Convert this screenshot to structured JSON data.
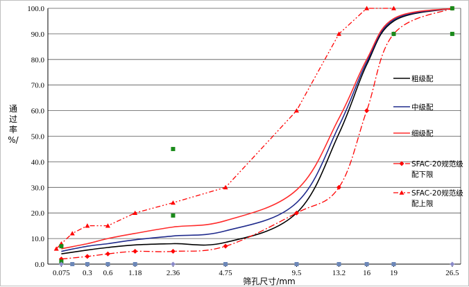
{
  "chart_data": {
    "type": "line",
    "xlabel": "筛孔尺寸/mm",
    "ylabel": [
      "通",
      "过",
      "率",
      "%/"
    ],
    "ylim": [
      0,
      100
    ],
    "yticks": [
      "0.0",
      "10.0",
      "20.0",
      "30.0",
      "40.0",
      "50.0",
      "60.0",
      "70.0",
      "80.0",
      "90.0",
      "100.0"
    ],
    "x_categories": [
      "0.075",
      "0.3",
      "0.6",
      "1.18",
      "2.36",
      "4.75",
      "9.5",
      "13.2",
      "16",
      "19",
      "26.5"
    ],
    "x_scale": "power-0.45",
    "grid": "horizontal",
    "legend_position": "right",
    "series": [
      {
        "name": "粗级配",
        "color": "#000000",
        "style": "solid",
        "smooth": true,
        "x": [
          0.075,
          0.3,
          0.6,
          1.18,
          2.36,
          4.75,
          9.5,
          13.2,
          16,
          19,
          26.5
        ],
        "y": [
          4,
          5.5,
          6.5,
          7.5,
          8,
          8.5,
          20,
          51,
          78,
          95,
          100
        ]
      },
      {
        "name": "中级配",
        "color": "#1f2a8c",
        "style": "solid",
        "smooth": true,
        "x": [
          0.075,
          0.3,
          0.6,
          1.18,
          2.36,
          4.75,
          9.5,
          13.2,
          16,
          19,
          26.5
        ],
        "y": [
          5,
          7,
          8,
          9.5,
          11,
          13,
          24,
          54,
          79,
          95.5,
          100
        ]
      },
      {
        "name": "细级配",
        "color": "#ff2b2b",
        "style": "solid",
        "smooth": true,
        "x": [
          0.075,
          0.3,
          0.6,
          1.18,
          2.36,
          4.75,
          9.5,
          13.2,
          16,
          19,
          26.5
        ],
        "y": [
          6,
          8,
          10,
          12,
          14.5,
          17,
          29,
          57,
          80,
          96,
          100
        ]
      },
      {
        "name": "SFAC-20规范级配下限",
        "color": "#ff0000",
        "style": "dashdot",
        "marker": "diamond",
        "smooth": true,
        "x": [
          0.075,
          0.3,
          0.6,
          1.18,
          2.36,
          4.75,
          9.5,
          13.2,
          16,
          19,
          26.5
        ],
        "y": [
          2,
          3,
          4,
          5,
          5,
          7,
          20,
          30,
          60,
          90,
          100
        ]
      },
      {
        "name": "SFAC-20规范级配上限",
        "color": "#ff0000",
        "style": "dashdotdot",
        "marker": "triangle",
        "smooth": false,
        "x": [
          0.05,
          0.075,
          0.15,
          0.3,
          0.6,
          1.18,
          2.36,
          4.75,
          9.5,
          13.2,
          16,
          19
        ],
        "y": [
          6,
          8,
          12,
          15,
          15,
          20,
          24,
          30,
          60,
          90,
          100,
          100
        ]
      }
    ],
    "extra_points": {
      "green_squares": [
        {
          "x": 0.075,
          "y": 7
        },
        {
          "x": 0.075,
          "y": 1
        },
        {
          "x": 2.36,
          "y": 45
        },
        {
          "x": 2.36,
          "y": 19
        },
        {
          "x": 19,
          "y": 90
        },
        {
          "x": 26.5,
          "y": 100
        },
        {
          "x": 26.5,
          "y": 90
        }
      ],
      "axis_markers": [
        {
          "x": 0.075,
          "y": 0,
          "shape": "diamond",
          "color": "#8a8ac8"
        },
        {
          "x": 0.15,
          "y": 0,
          "shape": "square",
          "color": "#6c87b8"
        },
        {
          "x": 0.3,
          "y": 0,
          "shape": "square",
          "color": "#6c87b8"
        },
        {
          "x": 0.6,
          "y": 0,
          "shape": "square",
          "color": "#6c87b8"
        },
        {
          "x": 1.18,
          "y": 0,
          "shape": "square",
          "color": "#6c87b8"
        },
        {
          "x": 2.36,
          "y": 0,
          "shape": "diamond",
          "color": "#8a8ac8"
        },
        {
          "x": 4.75,
          "y": 0,
          "shape": "square",
          "color": "#6c87b8"
        },
        {
          "x": 9.5,
          "y": 0,
          "shape": "square",
          "color": "#6c87b8"
        },
        {
          "x": 13.2,
          "y": 0,
          "shape": "square",
          "color": "#6c87b8"
        },
        {
          "x": 16,
          "y": 0,
          "shape": "square",
          "color": "#6c87b8"
        },
        {
          "x": 19,
          "y": 0,
          "shape": "square",
          "color": "#6c87b8"
        },
        {
          "x": 26.5,
          "y": 0,
          "shape": "diamond",
          "color": "#8a8ac8"
        }
      ]
    },
    "legend": [
      {
        "lines": [
          "粗级配"
        ],
        "series": 0
      },
      {
        "lines": [
          "中级配"
        ],
        "series": 1
      },
      {
        "lines": [
          "细级配"
        ],
        "series": 2
      },
      {
        "lines": [
          "SFAC-20规范级",
          "配下限"
        ],
        "series": 3
      },
      {
        "lines": [
          "SFAC-20规范级",
          "配上限"
        ],
        "series": 4
      }
    ]
  }
}
